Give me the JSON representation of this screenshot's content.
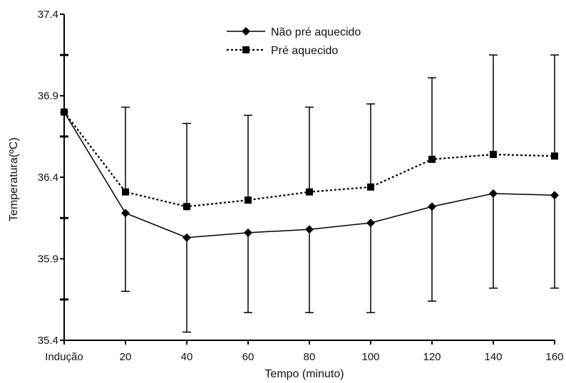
{
  "chart_data": {
    "type": "line",
    "xlabel": "Tempo (minuto)",
    "ylabel": "Temperatura(ºC)",
    "categories": [
      "Indução",
      "20",
      "40",
      "60",
      "80",
      "100",
      "120",
      "140",
      "160"
    ],
    "ylim": [
      35.4,
      37.4
    ],
    "yticks": [
      "35.4",
      "35.9",
      "36.4",
      "36.9",
      "37.4"
    ],
    "legend_position": "top-center",
    "grid": false,
    "series": [
      {
        "name": "Não pré aquecido",
        "line_style": "solid",
        "marker": "diamond",
        "values": [
          36.8,
          36.18,
          36.03,
          36.06,
          36.08,
          36.12,
          36.22,
          36.3,
          36.29
        ],
        "error_low": [
          null,
          35.7,
          35.45,
          35.57,
          35.57,
          35.57,
          35.64,
          35.72,
          35.72
        ],
        "error_high": [
          null,
          null,
          null,
          null,
          null,
          null,
          null,
          null,
          null
        ]
      },
      {
        "name": "Pré aquecido",
        "line_style": "dotted",
        "marker": "square",
        "values": [
          36.8,
          36.31,
          36.22,
          36.26,
          36.31,
          36.34,
          36.51,
          36.54,
          36.53
        ],
        "error_low": [
          null,
          null,
          null,
          null,
          null,
          null,
          null,
          null,
          null
        ],
        "error_high": [
          null,
          36.83,
          36.73,
          36.78,
          36.83,
          36.85,
          37.01,
          37.15,
          37.15
        ]
      }
    ]
  }
}
